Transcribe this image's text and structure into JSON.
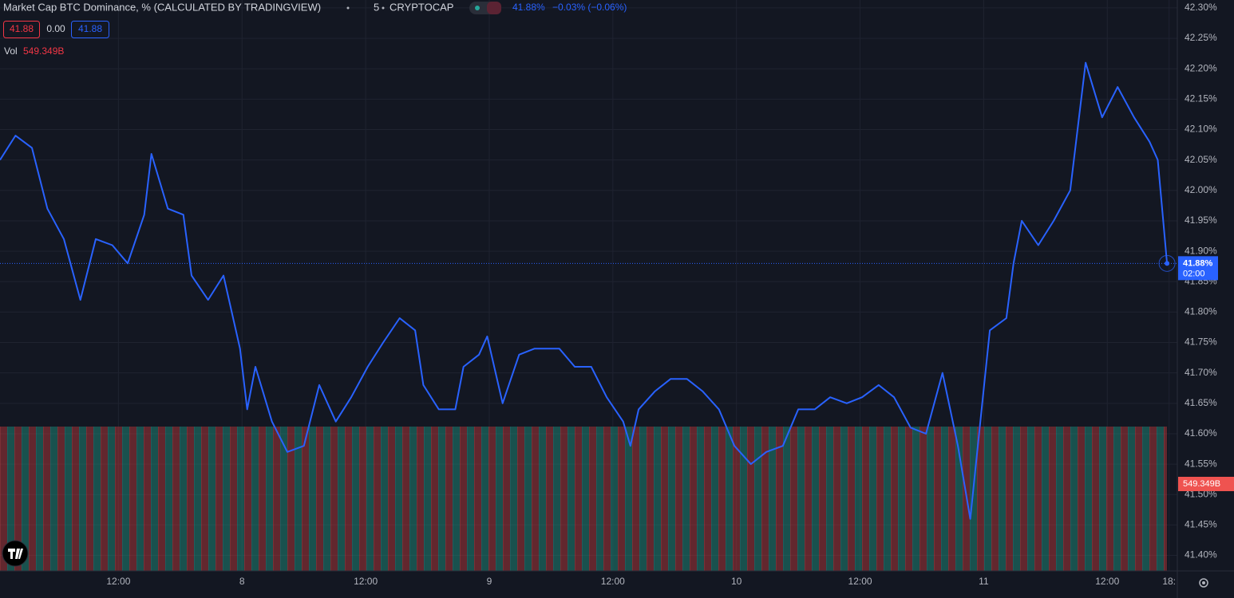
{
  "chart_data": {
    "type": "line",
    "title": "Market Cap BTC Dominance, % (CALCULATED BY TRADINGVIEW)",
    "interval": "5",
    "exchange": "CRYPTOCAP",
    "last_price": "41.88%",
    "change": "−0.03% (−0.06%)",
    "ohlc": [
      "41.88",
      "0.00",
      "41.88"
    ],
    "volume_label": "Vol",
    "volume_value": "549.349B",
    "price_badge": [
      "41.88%",
      "02:00"
    ],
    "color": "#2962ff",
    "x": [
      0.5,
      2.0,
      3.6,
      5.1,
      6.7,
      8.3,
      9.8,
      11.4,
      12.9,
      14.5,
      15.2,
      16.8,
      18.3,
      19.1,
      20.7,
      22.2,
      23.8,
      24.5,
      25.3,
      26.9,
      28.4,
      30.0,
      31.5,
      33.1,
      34.6,
      36.2,
      37.7,
      39.3,
      40.8,
      41.6,
      43.1,
      44.7,
      45.5,
      47.0,
      47.8,
      49.3,
      50.9,
      52.4,
      54.0,
      54.8,
      56.3,
      57.9,
      59.4,
      61.0,
      61.7,
      62.5,
      64.1,
      65.6,
      67.2,
      68.7,
      70.3,
      71.8,
      73.4,
      74.9,
      76.5,
      78.0,
      79.6,
      81.1,
      82.7,
      84.2,
      85.8,
      87.3,
      88.9,
      90.4,
      92.0,
      93.5,
      94.7,
      95.8,
      96.6,
      98.2,
      98.9,
      99.7,
      101.3,
      102.8,
      104.4,
      105.9,
      107.5,
      109.0,
      110.6,
      112.1,
      112.9,
      113.8
    ],
    "values": [
      42.05,
      42.09,
      42.07,
      41.97,
      41.92,
      41.82,
      41.92,
      41.91,
      41.88,
      41.96,
      42.06,
      41.97,
      41.96,
      41.86,
      41.82,
      41.86,
      41.74,
      41.64,
      41.71,
      41.62,
      41.57,
      41.58,
      41.68,
      41.62,
      41.66,
      41.71,
      41.75,
      41.79,
      41.77,
      41.68,
      41.64,
      41.64,
      41.71,
      41.73,
      41.76,
      41.65,
      41.73,
      41.74,
      41.74,
      41.74,
      41.71,
      41.71,
      41.66,
      41.62,
      41.58,
      41.64,
      41.67,
      41.69,
      41.69,
      41.67,
      41.64,
      41.58,
      41.55,
      41.57,
      41.58,
      41.64,
      41.64,
      41.66,
      41.65,
      41.66,
      41.68,
      41.66,
      41.61,
      41.6,
      41.7,
      41.58,
      41.46,
      41.64,
      41.77,
      41.79,
      41.88,
      41.95,
      41.91,
      41.95,
      42.0,
      42.21,
      42.12,
      42.17,
      42.12,
      42.08,
      42.05,
      41.88
    ],
    "xlim": [
      0.5,
      114.8
    ],
    "xticks": [
      {
        "value": 12,
        "label": "12:00"
      },
      {
        "value": 24,
        "label": "8"
      },
      {
        "value": 36,
        "label": "12:00"
      },
      {
        "value": 48,
        "label": "9"
      },
      {
        "value": 60,
        "label": "12:00"
      },
      {
        "value": 72,
        "label": "10"
      },
      {
        "value": 84,
        "label": "12:00"
      },
      {
        "value": 96,
        "label": "11"
      },
      {
        "value": 108,
        "label": "12:00"
      },
      {
        "value": 114,
        "label": "18:"
      }
    ],
    "ylim": [
      41.3745,
      42.313
    ],
    "yticks": [
      {
        "value": 42.3,
        "label": "42.30%"
      },
      {
        "value": 42.25,
        "label": "42.25%"
      },
      {
        "value": 42.2,
        "label": "42.20%"
      },
      {
        "value": 42.15,
        "label": "42.15%"
      },
      {
        "value": 42.1,
        "label": "42.10%"
      },
      {
        "value": 42.05,
        "label": "42.05%"
      },
      {
        "value": 42.0,
        "label": "42.00%"
      },
      {
        "value": 41.95,
        "label": "41.95%"
      },
      {
        "value": 41.9,
        "label": "41.90%"
      },
      {
        "value": 41.85,
        "label": "41.85%"
      },
      {
        "value": 41.8,
        "label": "41.80%"
      },
      {
        "value": 41.75,
        "label": "41.75%"
      },
      {
        "value": 41.7,
        "label": "41.70%"
      },
      {
        "value": 41.65,
        "label": "41.65%"
      },
      {
        "value": 41.6,
        "label": "41.60%"
      },
      {
        "value": 41.55,
        "label": "41.55%"
      },
      {
        "value": 41.5,
        "label": "41.50%"
      },
      {
        "value": 41.45,
        "label": "41.45%"
      },
      {
        "value": 41.4,
        "label": "41.40%"
      }
    ],
    "grid": true
  }
}
